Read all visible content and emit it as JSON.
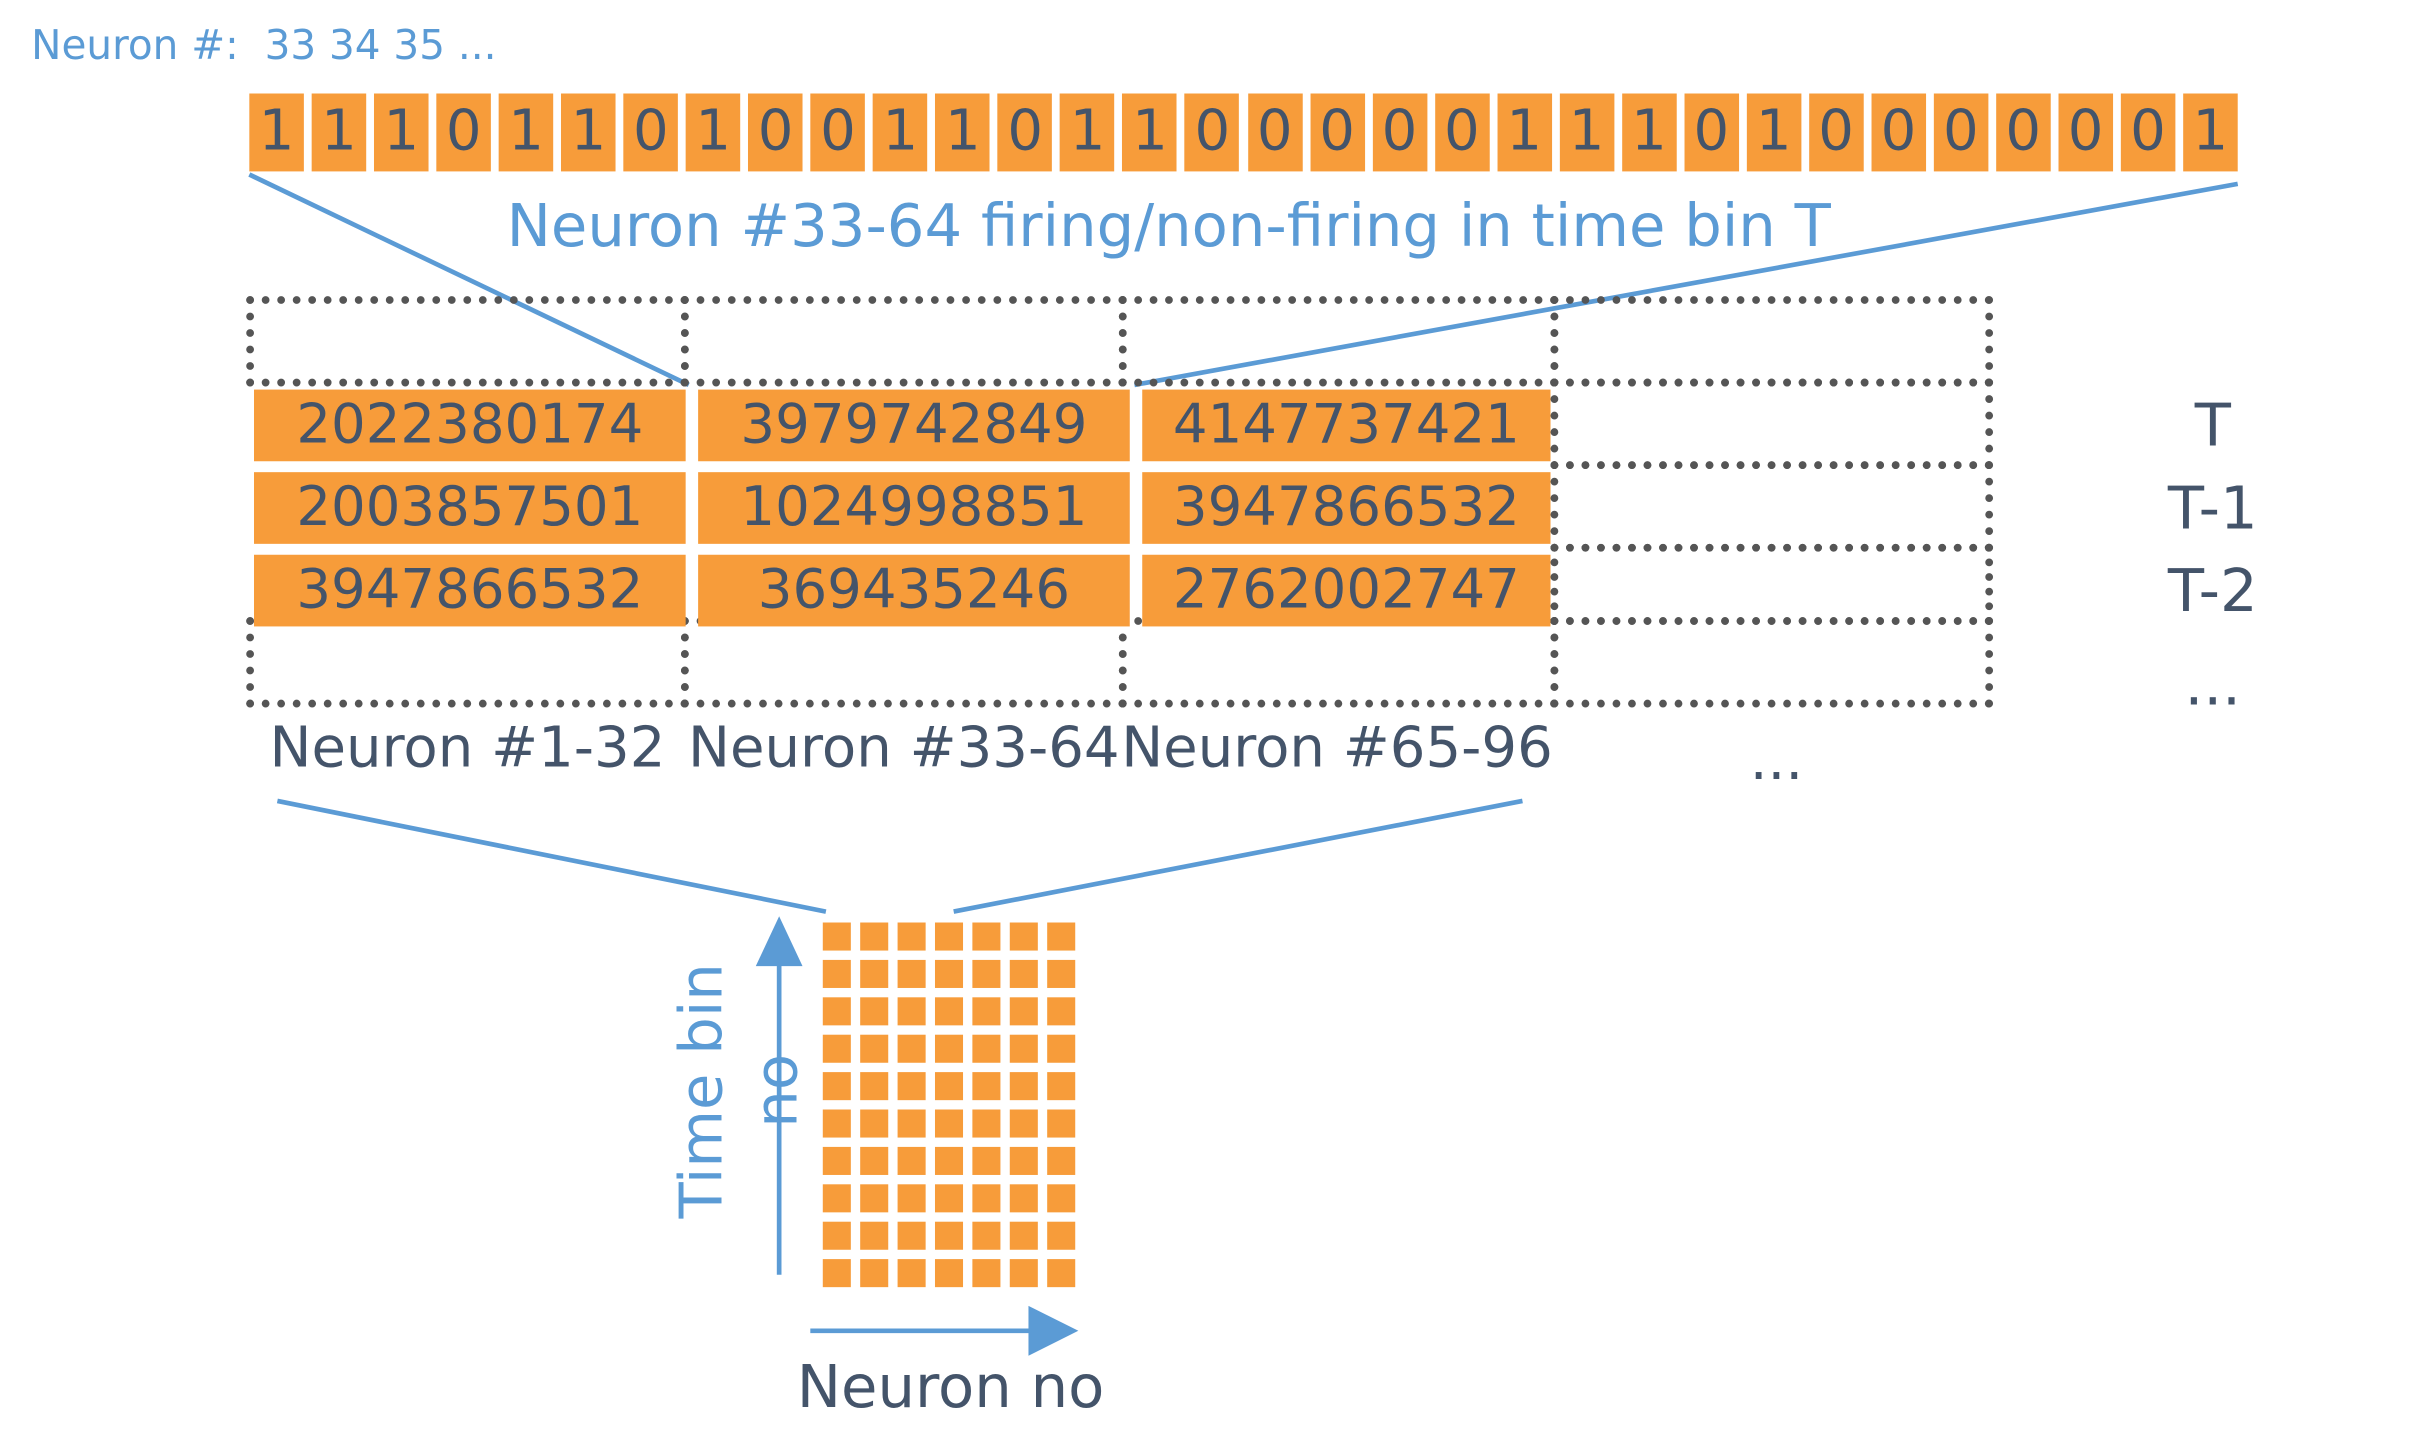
{
  "header": {
    "prefix": "Neuron #:",
    "indices": "33 34 35 ..."
  },
  "bits": [
    "1",
    "1",
    "1",
    "0",
    "1",
    "1",
    "0",
    "1",
    "0",
    "0",
    "1",
    "1",
    "0",
    "1",
    "1",
    "0",
    "0",
    "0",
    "0",
    "0",
    "1",
    "1",
    "1",
    "0",
    "1",
    "0",
    "0",
    "0",
    "0",
    "0",
    "0",
    "1"
  ],
  "caption": "Neuron #33-64 firing/non-firing in time bin T",
  "table": {
    "rows": [
      [
        "2022380174",
        "3979742849",
        "4147737421"
      ],
      [
        "2003857501",
        "1024998851",
        "3947866532"
      ],
      [
        "3947866532",
        "369435246",
        "2762002747"
      ]
    ],
    "column_labels": [
      "Neuron #1-32",
      "Neuron #33-64",
      "Neuron #65-96"
    ],
    "more_columns": "...",
    "time_labels": [
      "T",
      "T-1",
      "T-2",
      "..."
    ]
  },
  "mini_grid": {
    "y_axis_label": "Time bin no",
    "x_axis_label": "Neuron no"
  },
  "colors": {
    "accent_orange": "#f79c3a",
    "line_blue": "#5b9bd5",
    "text_dark": "#44546a",
    "dotted_border": "#555555"
  }
}
